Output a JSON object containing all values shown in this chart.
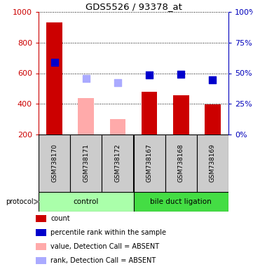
{
  "title": "GDS5526 / 93378_at",
  "samples": [
    "GSM738170",
    "GSM738171",
    "GSM738172",
    "GSM738167",
    "GSM738168",
    "GSM738169"
  ],
  "bar_values": [
    930,
    440,
    300,
    480,
    455,
    395
  ],
  "bar_colors": [
    "#cc0000",
    "#ffaaaa",
    "#ffaaaa",
    "#cc0000",
    "#cc0000",
    "#cc0000"
  ],
  "rank_values": [
    670,
    565,
    540,
    590,
    595,
    558
  ],
  "rank_colors": [
    "#0000cc",
    "#aaaaff",
    "#aaaaff",
    "#0000cc",
    "#0000cc",
    "#0000cc"
  ],
  "ylim_left": [
    200,
    1000
  ],
  "ylim_right": [
    0,
    100
  ],
  "yticks_left": [
    200,
    400,
    600,
    800,
    1000
  ],
  "yticks_right": [
    0,
    25,
    50,
    75,
    100
  ],
  "ylabel_left_color": "#cc0000",
  "ylabel_right_color": "#0000bb",
  "bar_width": 0.5,
  "rank_marker_size": 55,
  "sample_box_color": "#cccccc",
  "bar_bottom": 200,
  "control_color": "#aaffaa",
  "bdl_color": "#44dd44",
  "legend_items": [
    {
      "label": "count",
      "color": "#cc0000"
    },
    {
      "label": "percentile rank within the sample",
      "color": "#0000cc"
    },
    {
      "label": "value, Detection Call = ABSENT",
      "color": "#ffaaaa"
    },
    {
      "label": "rank, Detection Call = ABSENT",
      "color": "#aaaaff"
    }
  ]
}
